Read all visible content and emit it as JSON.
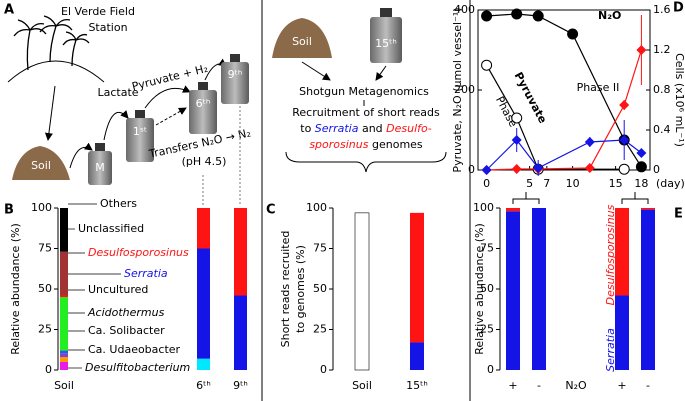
{
  "panel_a": {
    "label": "A",
    "site": [
      "El Verde Field",
      "Station"
    ],
    "soil": "Soil",
    "m": "M",
    "lactate": "Lactate",
    "t1": "1ˢᵗ",
    "pyruvate": "Pyruvate + H₂",
    "t6": "6ᵗʰ",
    "t9": "9ᵗʰ",
    "transfers": "Transfers N₂O → N₂",
    "ph": "(pH 4.5)"
  },
  "panel_c": {
    "icons": [
      "Soil",
      "15ᵗʰ"
    ],
    "method": "Shotgun Metagenomics",
    "caption": [
      [
        "Recruitment of short reads"
      ],
      [
        "to ",
        "Serratia",
        " and ",
        "Desulfo-"
      ],
      [
        "sporosinus",
        " genomes"
      ]
    ]
  },
  "chart_data": [
    {
      "type": "stacked_bar",
      "panel": "B",
      "ylabel": [
        "Relative abundance (%)"
      ],
      "categories": [
        "Soil",
        "6ᵗʰ",
        "9ᵗʰ"
      ],
      "ylim": [
        0,
        100
      ],
      "yticks": [
        0,
        25,
        50,
        75,
        100
      ],
      "series": [
        {
          "name": "Desulfitobacterium",
          "color": "#e81ee8",
          "values": [
            5,
            0,
            0
          ]
        },
        {
          "color": "#00e8ff",
          "values": [
            0,
            7,
            0
          ]
        },
        {
          "name": "Ca. Udaeobacter",
          "color": "#ff9a00",
          "values": [
            3,
            0,
            0
          ]
        },
        {
          "name": "Ca. Solibacter",
          "color": "#8a3fc8",
          "values": [
            2,
            0,
            0
          ]
        },
        {
          "name": "Acidothermus",
          "color": "#2e5ae8",
          "values": [
            2,
            0,
            0
          ]
        },
        {
          "name": "Uncultured",
          "color": "#22ee22",
          "values": [
            33,
            0,
            0
          ]
        },
        {
          "name": "Serratia",
          "color": "#1414e6",
          "values": [
            0,
            68,
            46
          ]
        },
        {
          "name": "Desulfosporosinus",
          "color": "#ff1414",
          "values": [
            1,
            25,
            54
          ]
        },
        {
          "name": "Unclassified",
          "color": "#a33232",
          "values": [
            27,
            0,
            0
          ]
        },
        {
          "name": "Others",
          "color": "#000000",
          "values": [
            27,
            0,
            0
          ]
        }
      ]
    },
    {
      "type": "stacked_bar",
      "panel": "C",
      "ylabel": [
        "Short reads recruited",
        "to genomes (%)"
      ],
      "categories": [
        "Soil",
        "15ᵗʰ"
      ],
      "ylim": [
        0,
        100
      ],
      "yticks": [
        0,
        25,
        50,
        75,
        100
      ],
      "series": [
        {
          "color": "#ffffff",
          "values": [
            97,
            0
          ]
        },
        {
          "color": "#1414e6",
          "values": [
            0,
            17
          ]
        },
        {
          "color": "#ff1414",
          "values": [
            0,
            80
          ]
        }
      ]
    },
    {
      "type": "line",
      "panel": "D",
      "xlabel": "(day)",
      "ylabel": "Pyruvate, N₂O (μmol vessel⁻¹)",
      "y2label": "Cells (x10⁶ mL⁻¹)",
      "xlim": [
        -1,
        19
      ],
      "xticks": [
        0,
        5,
        7,
        10,
        15,
        18
      ],
      "ylim": [
        0,
        400
      ],
      "yticks": [
        0,
        200,
        400
      ],
      "y2lim": [
        0,
        1.6
      ],
      "y2ticks": [
        0,
        0.4,
        0.8,
        1.2,
        1.6
      ],
      "annotations": [
        "Phase",
        "Phase II"
      ],
      "series": [
        {
          "name": "N₂O",
          "color": "#000000",
          "fill": "#000000",
          "marker": "circle",
          "x": [
            0,
            3.5,
            6,
            10,
            16,
            18
          ],
          "values": [
            385,
            390,
            385,
            340,
            75,
            8
          ]
        },
        {
          "name": "Pyruvate",
          "color": "#000000",
          "fill": "#ffffff",
          "marker": "circle",
          "x": [
            0,
            3.5,
            6,
            16
          ],
          "values": [
            262,
            130,
            2,
            2
          ]
        },
        {
          "color": "#ff1414",
          "fill": "#ff1414",
          "marker": "diamond",
          "axis": "y2",
          "x": [
            0,
            3.5,
            6,
            12,
            16,
            18
          ],
          "values": [
            0,
            0.01,
            0.01,
            0.02,
            0.65,
            1.2
          ],
          "errors": [
            0,
            0,
            0,
            0,
            0.05,
            0.35
          ]
        },
        {
          "color": "#1414e6",
          "fill": "#1414e6",
          "marker": "diamond",
          "axis": "y2",
          "x": [
            0,
            3.5,
            6,
            12,
            16,
            18
          ],
          "values": [
            0,
            0.3,
            0.02,
            0.28,
            0.3,
            0.17
          ],
          "errors": [
            0,
            0.12,
            0.08,
            0.05,
            0.2,
            0
          ]
        }
      ]
    },
    {
      "type": "stacked_bar",
      "panel": "E",
      "ylabel": [
        "Relative abundance (%)"
      ],
      "xlabel": "N₂O",
      "categories": [
        "+",
        "-",
        "+",
        "-"
      ],
      "ylim": [
        0,
        100
      ],
      "yticks": [
        0,
        25,
        50,
        75,
        100
      ],
      "series": [
        {
          "name": "Serratia",
          "color": "#1414e6",
          "values": [
            98,
            100,
            46,
            99
          ]
        },
        {
          "name": "Desulfosporosinus",
          "color": "#ff1414",
          "values": [
            2,
            0,
            54,
            1
          ]
        }
      ]
    }
  ]
}
